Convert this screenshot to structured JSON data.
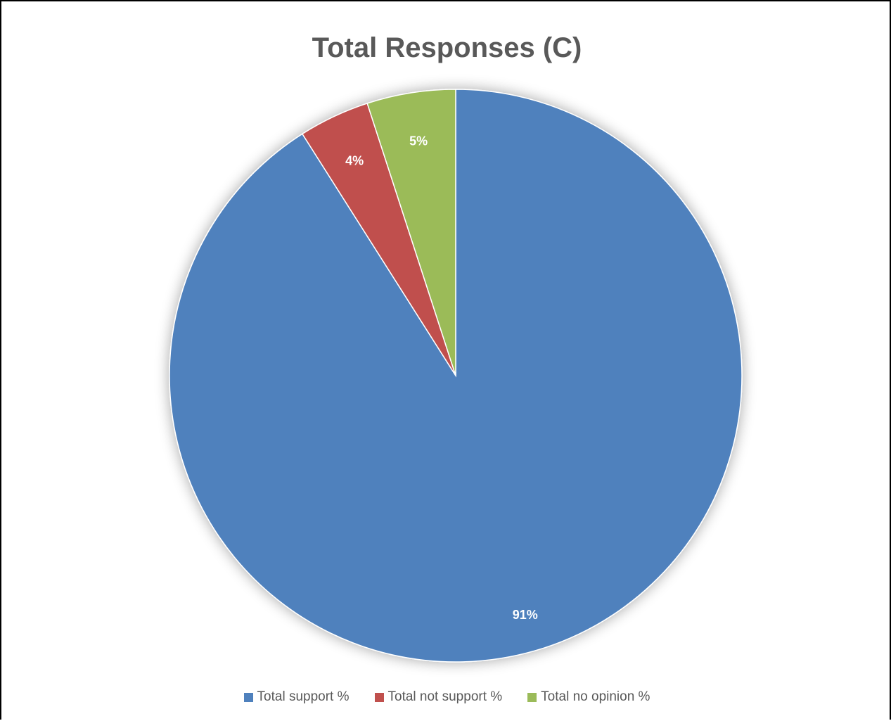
{
  "chart_data": {
    "type": "pie",
    "title": "Total Responses (C)",
    "categories": [
      "Total support %",
      "Total not support %",
      "Total no opinion %"
    ],
    "values": [
      91,
      4,
      5
    ],
    "data_labels": [
      "91%",
      "4%",
      "5%"
    ],
    "colors": [
      "#4f81bd",
      "#c0504d",
      "#9bbb59"
    ],
    "start_angle_deg": 0,
    "direction": "clockwise",
    "legend_position": "bottom"
  }
}
